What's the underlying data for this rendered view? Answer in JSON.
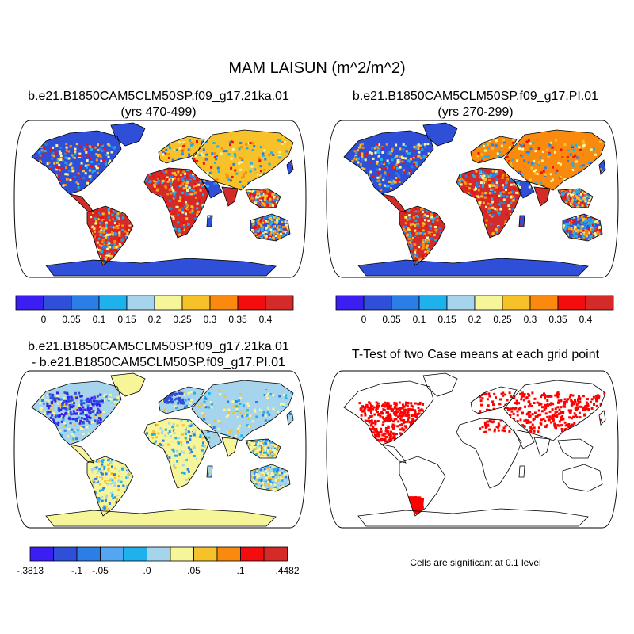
{
  "title": "MAM LAISUN (m^2/m^2)",
  "panels": [
    {
      "title_line1": "b.e21.B1850CAM5CLM50SP.f09_g17.21ka.01",
      "title_line2": "(yrs 470-499)"
    },
    {
      "title_line1": "b.e21.B1850CAM5CLM50SP.f09_g17.PI.01",
      "title_line2": "(yrs 270-299)"
    },
    {
      "title_line1": "b.e21.B1850CAM5CLM50SP.f09_g17.21ka.01",
      "title_line2": "- b.e21.B1850CAM5CLM50SP.f09_g17.PI.01"
    },
    {
      "title_line1": "T-Test of two Case means at each grid point"
    }
  ],
  "colorbars": {
    "abs": {
      "colors": [
        "#3b1ef2",
        "#2f4fd9",
        "#2b7ee6",
        "#1fb1ec",
        "#a6d4ec",
        "#f6f59a",
        "#f7c12a",
        "#f98a0d",
        "#f40d0d",
        "#d42a28"
      ],
      "labels": [
        "0",
        "0.05",
        "0.1",
        "0.15",
        "0.2",
        "0.25",
        "0.3",
        "0.35",
        "0.4"
      ]
    },
    "diff": {
      "colors": [
        "#3b1ef2",
        "#2f4fd9",
        "#2b7ee6",
        "#53a6ef",
        "#1fb1ec",
        "#a6d4ec",
        "#f6f59a",
        "#f7c12a",
        "#f98a0d",
        "#f40d0d",
        "#d42a28"
      ],
      "labels": [
        "-.3813",
        "-.1",
        "-.05",
        ".0",
        ".05",
        ".1",
        ".4482"
      ]
    }
  },
  "significance_color": "#ff0000",
  "ocean_color": "#ffffff",
  "note": "Cells are significant at 0.1 level"
}
